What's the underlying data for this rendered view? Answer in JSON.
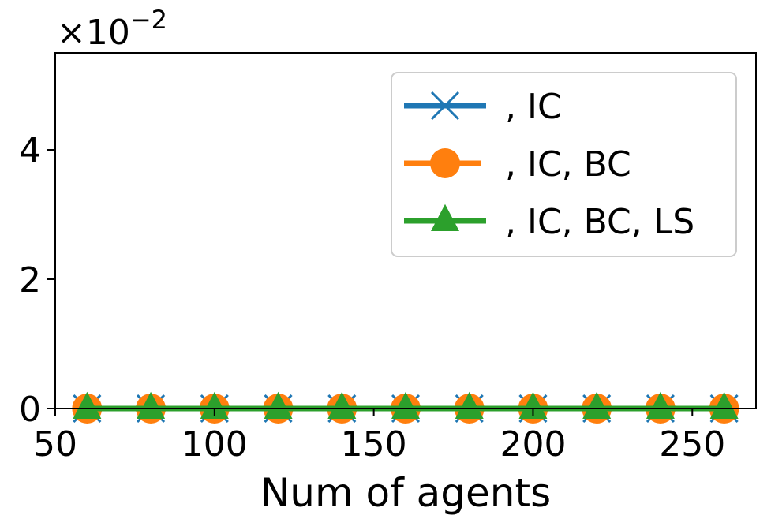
{
  "chart_data": {
    "type": "line",
    "title": "",
    "xlabel": "Num of agents",
    "ylabel": "",
    "y_scale_factor": {
      "base": "×10",
      "exponent": "−2"
    },
    "xlim": [
      50,
      270
    ],
    "ylim": [
      0,
      0.055
    ],
    "x_ticks": [
      50,
      100,
      150,
      200,
      250
    ],
    "y_ticks": [
      0,
      0.02,
      0.04
    ],
    "y_tick_labels": [
      "0",
      "2",
      "4"
    ],
    "grid": false,
    "legend_position": "upper-right",
    "x": [
      60,
      80,
      100,
      120,
      140,
      160,
      180,
      200,
      220,
      240,
      260
    ],
    "series": [
      {
        "name": ", IC",
        "color": "#1f77b4",
        "marker": "x",
        "line_style": "solid",
        "values": [
          0,
          0,
          0,
          0,
          0,
          0,
          0,
          0,
          0,
          0,
          0
        ]
      },
      {
        "name": ", IC, BC",
        "color": "#ff7f0e",
        "marker": "circle",
        "line_style": "dashed",
        "values": [
          0,
          0,
          0,
          0,
          0,
          0,
          0,
          0,
          0,
          0,
          0
        ]
      },
      {
        "name": ", IC, BC, LS",
        "color": "#2ca02c",
        "marker": "triangle",
        "line_style": "solid",
        "values": [
          0,
          0,
          0,
          0,
          0,
          0,
          0,
          0,
          0,
          0,
          0
        ]
      }
    ]
  }
}
